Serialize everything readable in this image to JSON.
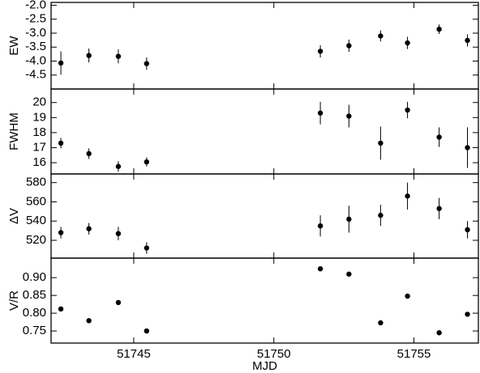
{
  "chart_data": [
    {
      "type": "scatter",
      "ylabel": "EW",
      "x": [
        51742.4,
        51743.4,
        51744.45,
        51745.46,
        51751.66,
        51752.68,
        51753.81,
        51754.77,
        51755.9,
        51756.91
      ],
      "values": [
        -4.07,
        -3.8,
        -3.83,
        -4.09,
        -3.65,
        -3.45,
        -3.1,
        -3.35,
        -2.86,
        -3.26
      ],
      "errors": [
        0.42,
        0.25,
        0.25,
        0.22,
        0.22,
        0.22,
        0.2,
        0.22,
        0.17,
        0.22
      ],
      "color": "#000000",
      "xlim": [
        51742.05,
        51757.3
      ],
      "xticks": [
        51745,
        51750,
        51755
      ],
      "ylim": [
        -5.0,
        -1.9
      ],
      "yticks": [
        {
          "value": -2,
          "label": "-2.0"
        },
        -2.5,
        {
          "value": -3,
          "label": "-3.0"
        },
        -3.5,
        {
          "value": -4,
          "label": "-4.0"
        },
        -4.5
      ]
    },
    {
      "type": "scatter",
      "ylabel": "FWHM",
      "x": [
        51742.4,
        51743.4,
        51744.45,
        51745.46,
        51751.66,
        51752.68,
        51753.81,
        51754.77,
        51755.9,
        51756.91
      ],
      "values": [
        17.3,
        16.6,
        15.75,
        16.05,
        19.3,
        19.1,
        17.3,
        19.5,
        17.7,
        17.0
      ],
      "errors": [
        0.35,
        0.35,
        0.35,
        0.3,
        0.75,
        0.75,
        1.1,
        0.55,
        0.65,
        1.35
      ],
      "color": "#000000",
      "xlim": [
        51742.05,
        51757.3
      ],
      "xticks": [
        51745,
        51750,
        51755
      ],
      "ylim": [
        15.25,
        20.9
      ],
      "yticks": [
        16,
        17,
        18,
        19,
        20
      ]
    },
    {
      "type": "scatter",
      "ylabel": "ΔV",
      "x": [
        51742.4,
        51743.4,
        51744.45,
        51745.46,
        51751.66,
        51752.68,
        51753.81,
        51754.77,
        51755.9,
        51756.91
      ],
      "values": [
        528,
        532,
        527,
        512,
        535,
        542,
        546,
        566,
        553,
        531
      ],
      "errors": [
        6,
        6,
        7,
        6,
        11,
        14,
        11,
        14,
        11,
        9
      ],
      "color": "#000000",
      "xlim": [
        51742.05,
        51757.3
      ],
      "xticks": [
        51745,
        51750,
        51755
      ],
      "ylim": [
        501.5,
        589
      ],
      "yticks": [
        520,
        540,
        560,
        580
      ]
    },
    {
      "type": "scatter",
      "ylabel": "V/R",
      "xlabel": "MJD",
      "x": [
        51742.4,
        51743.4,
        51744.45,
        51745.46,
        51751.66,
        51752.68,
        51753.81,
        51754.77,
        51755.9,
        51756.91
      ],
      "values": [
        0.812,
        0.779,
        0.83,
        0.75,
        0.925,
        0.91,
        0.773,
        0.848,
        0.745,
        0.797
      ],
      "color": "#000000",
      "xlim": [
        51742.05,
        51757.3
      ],
      "xticks": [
        51745,
        51750,
        51755
      ],
      "ylim": [
        0.716,
        0.955
      ],
      "yticks": [
        0.75,
        {
          "value": 0.8,
          "label": "0.80"
        },
        0.85,
        {
          "value": 0.9,
          "label": "0.90"
        }
      ]
    }
  ]
}
